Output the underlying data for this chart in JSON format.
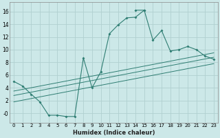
{
  "xlabel": "Humidex (Indice chaleur)",
  "bg_color": "#cce8e8",
  "grid_color": "#b0d0d0",
  "line_color": "#2e7d72",
  "xlim": [
    -0.5,
    23.5
  ],
  "ylim": [
    -1.5,
    17.5
  ],
  "xticks": [
    0,
    1,
    2,
    3,
    4,
    5,
    6,
    7,
    8,
    9,
    10,
    11,
    12,
    13,
    14,
    15,
    16,
    17,
    18,
    19,
    20,
    21,
    22,
    23
  ],
  "yticks": [
    0,
    2,
    4,
    6,
    8,
    10,
    12,
    14,
    16
  ],
  "ytick_labels": [
    "-0",
    "2",
    "4",
    "6",
    "8",
    "10",
    "12",
    "14",
    "16"
  ],
  "series1_x": [
    0,
    1,
    2,
    3,
    4,
    5,
    6,
    7,
    8,
    9,
    10,
    11,
    12,
    13,
    14,
    15
  ],
  "series1_y": [
    5.0,
    4.3,
    3.0,
    1.8,
    -0.3,
    -0.3,
    -0.5,
    -0.5,
    8.7,
    4.0,
    6.5,
    12.5,
    13.9,
    15.0,
    15.1,
    16.2
  ],
  "series2_x": [
    14,
    15,
    16,
    17,
    18,
    19,
    20,
    21,
    22,
    23
  ],
  "series2_y": [
    16.2,
    16.2,
    11.5,
    13.0,
    9.8,
    10.0,
    10.5,
    10.0,
    9.0,
    8.5
  ],
  "trend_lines": [
    {
      "x": [
        0,
        23
      ],
      "y": [
        3.5,
        9.5
      ]
    },
    {
      "x": [
        0,
        23
      ],
      "y": [
        2.8,
        8.8
      ]
    },
    {
      "x": [
        0,
        23
      ],
      "y": [
        1.8,
        7.8
      ]
    }
  ]
}
